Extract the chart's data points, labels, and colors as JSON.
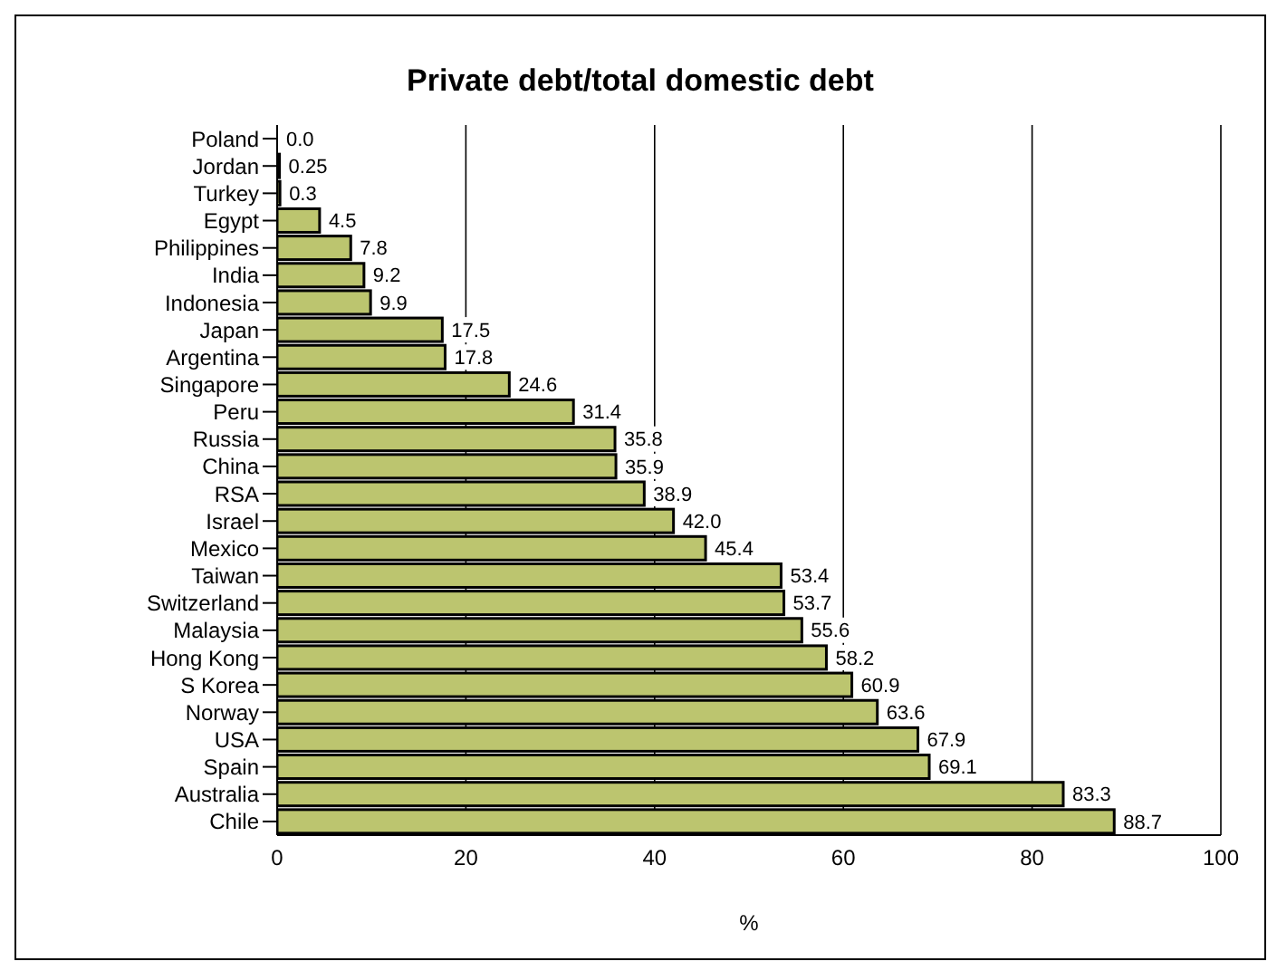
{
  "chart_data": {
    "type": "bar",
    "orientation": "horizontal",
    "title": "Private debt/total domestic debt",
    "xlabel": "%",
    "categories": [
      "Poland",
      "Jordan",
      "Turkey",
      "Egypt",
      "Philippines",
      "India",
      "Indonesia",
      "Japan",
      "Argentina",
      "Singapore",
      "Peru",
      "Russia",
      "China",
      "RSA",
      "Israel",
      "Mexico",
      "Taiwan",
      "Switzerland",
      "Malaysia",
      "Hong Kong",
      "S Korea",
      "Norway",
      "USA",
      "Spain",
      "Australia",
      "Chile"
    ],
    "values": [
      0,
      0.25,
      0.3,
      4.5,
      7.8,
      9.2,
      9.9,
      17.5,
      17.8,
      24.6,
      31.4,
      35.8,
      35.9,
      38.9,
      42.0,
      45.4,
      53.4,
      53.7,
      55.6,
      58.2,
      60.9,
      63.6,
      67.9,
      69.1,
      83.3,
      88.7
    ],
    "value_labels": [
      "0.0",
      "0.25",
      "0.3",
      "4.5",
      "7.8",
      "9.2",
      "9.9",
      "17.5",
      "17.8",
      "24.6",
      "31.4",
      "35.8",
      "35.9",
      "38.9",
      "42.0",
      "45.4",
      "53.4",
      "53.7",
      "55.6",
      "58.2",
      "60.9",
      "63.6",
      "67.9",
      "69.1",
      "83.3",
      "88.7"
    ],
    "color": "#bcc56f",
    "xlim": [
      0,
      100
    ],
    "xticks": [
      0,
      20,
      40,
      60,
      80,
      100
    ],
    "grid": "x"
  }
}
